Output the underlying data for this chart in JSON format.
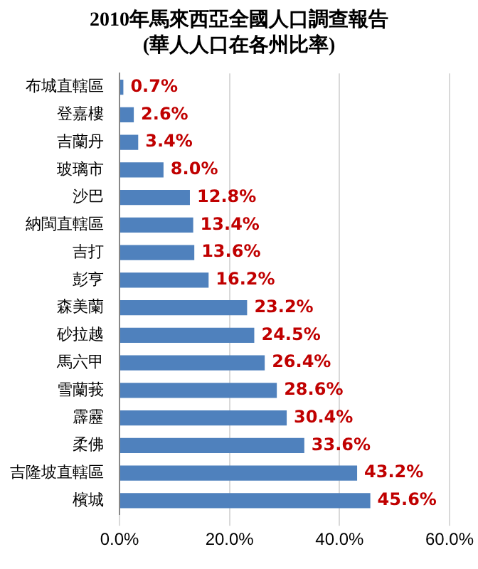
{
  "chart_data": {
    "type": "bar",
    "orientation": "horizontal",
    "title": "2010年馬來西亞全國人口調查報告",
    "subtitle": "(華人人口在各州比率)",
    "categories": [
      "布城直轄區",
      "登嘉樓",
      "吉蘭丹",
      "玻璃市",
      "沙巴",
      "納閩直轄區",
      "吉打",
      "彭亨",
      "森美蘭",
      "砂拉越",
      "馬六甲",
      "雪蘭莪",
      "霹靂",
      "柔佛",
      "吉隆坡直轄區",
      "檳城"
    ],
    "values": [
      0.7,
      2.6,
      3.4,
      8.0,
      12.8,
      13.4,
      13.6,
      16.2,
      23.2,
      24.5,
      26.4,
      28.6,
      30.4,
      33.6,
      43.2,
      45.6
    ],
    "value_labels": [
      "0.7%",
      "2.6%",
      "3.4%",
      "8.0%",
      "12.8%",
      "13.4%",
      "13.6%",
      "16.2%",
      "23.2%",
      "24.5%",
      "26.4%",
      "28.6%",
      "30.4%",
      "33.6%",
      "43.2%",
      "45.6%"
    ],
    "color": "#4f81bd",
    "xlim": [
      0,
      60
    ],
    "xticks": [
      {
        "value": 0,
        "label": "0.0%"
      },
      {
        "value": 20,
        "label": "20.0%"
      },
      {
        "value": 40,
        "label": "40.0%"
      },
      {
        "value": 60,
        "label": "60.0%"
      }
    ],
    "grid": "x",
    "legend": false
  }
}
